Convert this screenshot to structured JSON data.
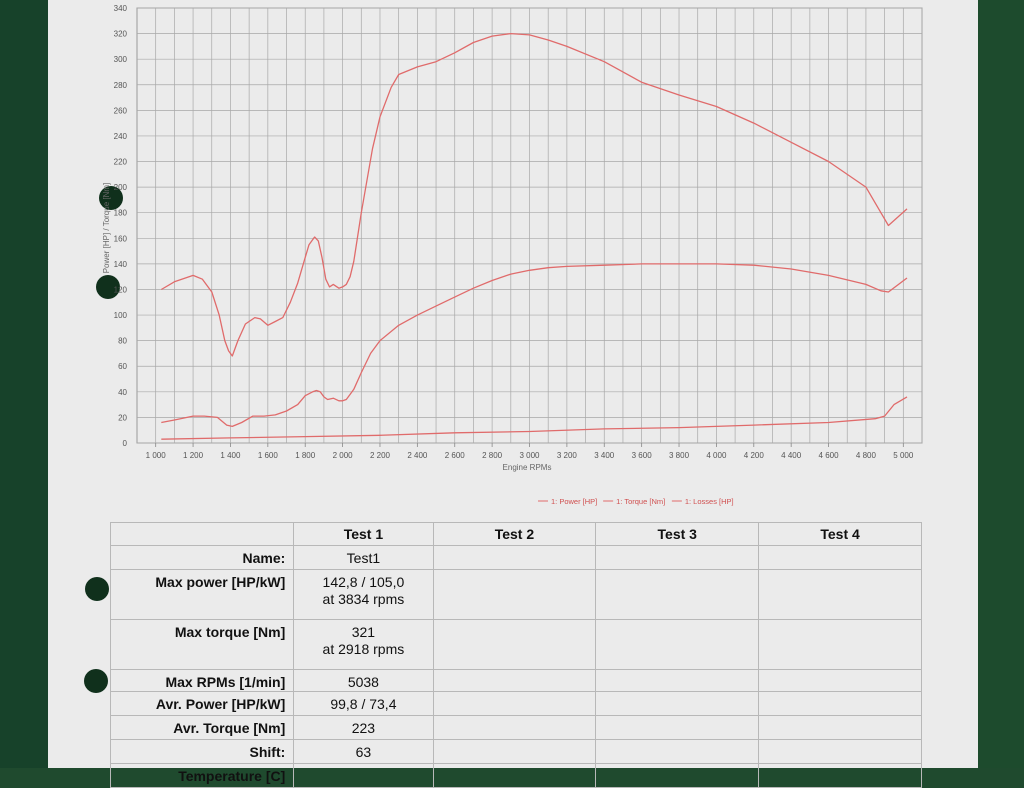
{
  "chart_data": {
    "type": "line",
    "xlabel": "Engine RPMs",
    "ylabel": "Power [HP] / Torque [Nm]",
    "xlim": [
      900,
      5100
    ],
    "ylim": [
      0,
      340
    ],
    "x_ticks": [
      1000,
      1200,
      1400,
      1600,
      1800,
      2000,
      2200,
      2400,
      2600,
      2800,
      3000,
      3200,
      3400,
      3600,
      3800,
      4000,
      4200,
      4400,
      4600,
      4800,
      5000
    ],
    "x_tick_labels": [
      "1 000",
      "1 200",
      "1 400",
      "1 600",
      "1 800",
      "2 000",
      "2 200",
      "2 400",
      "2 600",
      "2 800",
      "3 000",
      "3 200",
      "3 400",
      "3 600",
      "3 800",
      "4 000",
      "4 200",
      "4 400",
      "4 600",
      "4 800",
      "5 000"
    ],
    "y_ticks": [
      0,
      20,
      40,
      60,
      80,
      100,
      120,
      140,
      160,
      180,
      200,
      220,
      240,
      260,
      280,
      300,
      320,
      340
    ],
    "grid": true,
    "legend_position": "bottom-right",
    "series": [
      {
        "name": "1: Power [HP]",
        "color": "#e06b6b",
        "x": [
          1030,
          1100,
          1200,
          1260,
          1330,
          1380,
          1410,
          1460,
          1520,
          1580,
          1640,
          1700,
          1760,
          1800,
          1840,
          1860,
          1880,
          1900,
          1920,
          1950,
          1980,
          2000,
          2020,
          2040,
          2060,
          2100,
          2150,
          2200,
          2300,
          2400,
          2500,
          2600,
          2700,
          2800,
          2900,
          3000,
          3100,
          3200,
          3400,
          3600,
          3800,
          4000,
          4200,
          4400,
          4600,
          4800,
          4880,
          4920,
          5020
        ],
        "y": [
          16,
          18,
          21,
          21,
          20,
          14,
          13,
          16,
          21,
          21,
          22,
          25,
          30,
          37,
          40,
          41,
          40,
          36,
          34,
          35,
          33,
          33,
          34,
          38,
          42,
          55,
          70,
          80,
          92,
          100,
          107,
          114,
          121,
          127,
          132,
          135,
          137,
          138,
          139,
          140,
          140,
          140,
          139,
          136,
          131,
          124,
          119,
          118,
          129
        ]
      },
      {
        "name": "1: Torque [Nm]",
        "color": "#e06b6b",
        "x": [
          1030,
          1100,
          1200,
          1250,
          1300,
          1340,
          1370,
          1390,
          1410,
          1440,
          1480,
          1530,
          1560,
          1600,
          1640,
          1680,
          1720,
          1760,
          1790,
          1820,
          1850,
          1870,
          1890,
          1910,
          1930,
          1950,
          1980,
          2000,
          2020,
          2040,
          2060,
          2100,
          2160,
          2200,
          2260,
          2300,
          2400,
          2500,
          2600,
          2700,
          2800,
          2900,
          3000,
          3100,
          3200,
          3400,
          3600,
          3800,
          4000,
          4200,
          4400,
          4600,
          4800,
          4880,
          4920,
          5020
        ],
        "y": [
          120,
          126,
          131,
          128,
          118,
          100,
          80,
          72,
          68,
          80,
          93,
          98,
          97,
          92,
          95,
          98,
          110,
          125,
          140,
          155,
          161,
          158,
          145,
          128,
          122,
          124,
          121,
          122,
          124,
          130,
          142,
          180,
          230,
          255,
          278,
          288,
          294,
          298,
          305,
          313,
          318,
          320,
          319,
          315,
          310,
          298,
          282,
          272,
          263,
          250,
          235,
          220,
          200,
          180,
          170,
          183
        ]
      },
      {
        "name": "1: Losses [HP]",
        "color": "#e06b6b",
        "x": [
          1030,
          1400,
          1800,
          2200,
          2600,
          3000,
          3400,
          3800,
          4200,
          4600,
          4850,
          4900,
          4950,
          5020
        ],
        "y": [
          3,
          4,
          5,
          6,
          8,
          9,
          11,
          12,
          14,
          16,
          19,
          21,
          30,
          36
        ]
      }
    ]
  },
  "table": {
    "headers": [
      "",
      "Test 1",
      "Test 2",
      "Test 3",
      "Test 4"
    ],
    "rows": [
      {
        "label": "Name:",
        "test1": [
          "Test1"
        ]
      },
      {
        "label": "Max power [HP/kW]",
        "test1": [
          "142,8 / 105,0",
          "at 3834 rpms"
        ]
      },
      {
        "label": "Max torque [Nm]",
        "test1": [
          "321",
          "at 2918 rpms"
        ]
      },
      {
        "label": "Max RPMs [1/min]",
        "test1": [
          "5038"
        ]
      },
      {
        "label": "Avr. Power [HP/kW]",
        "test1": [
          "99,8 / 73,4"
        ]
      },
      {
        "label": "Avr. Torque [Nm]",
        "test1": [
          "223"
        ]
      },
      {
        "label": "Shift:",
        "test1": [
          "63"
        ]
      },
      {
        "label": "Temperature [C]",
        "test1": [
          ""
        ]
      }
    ]
  }
}
